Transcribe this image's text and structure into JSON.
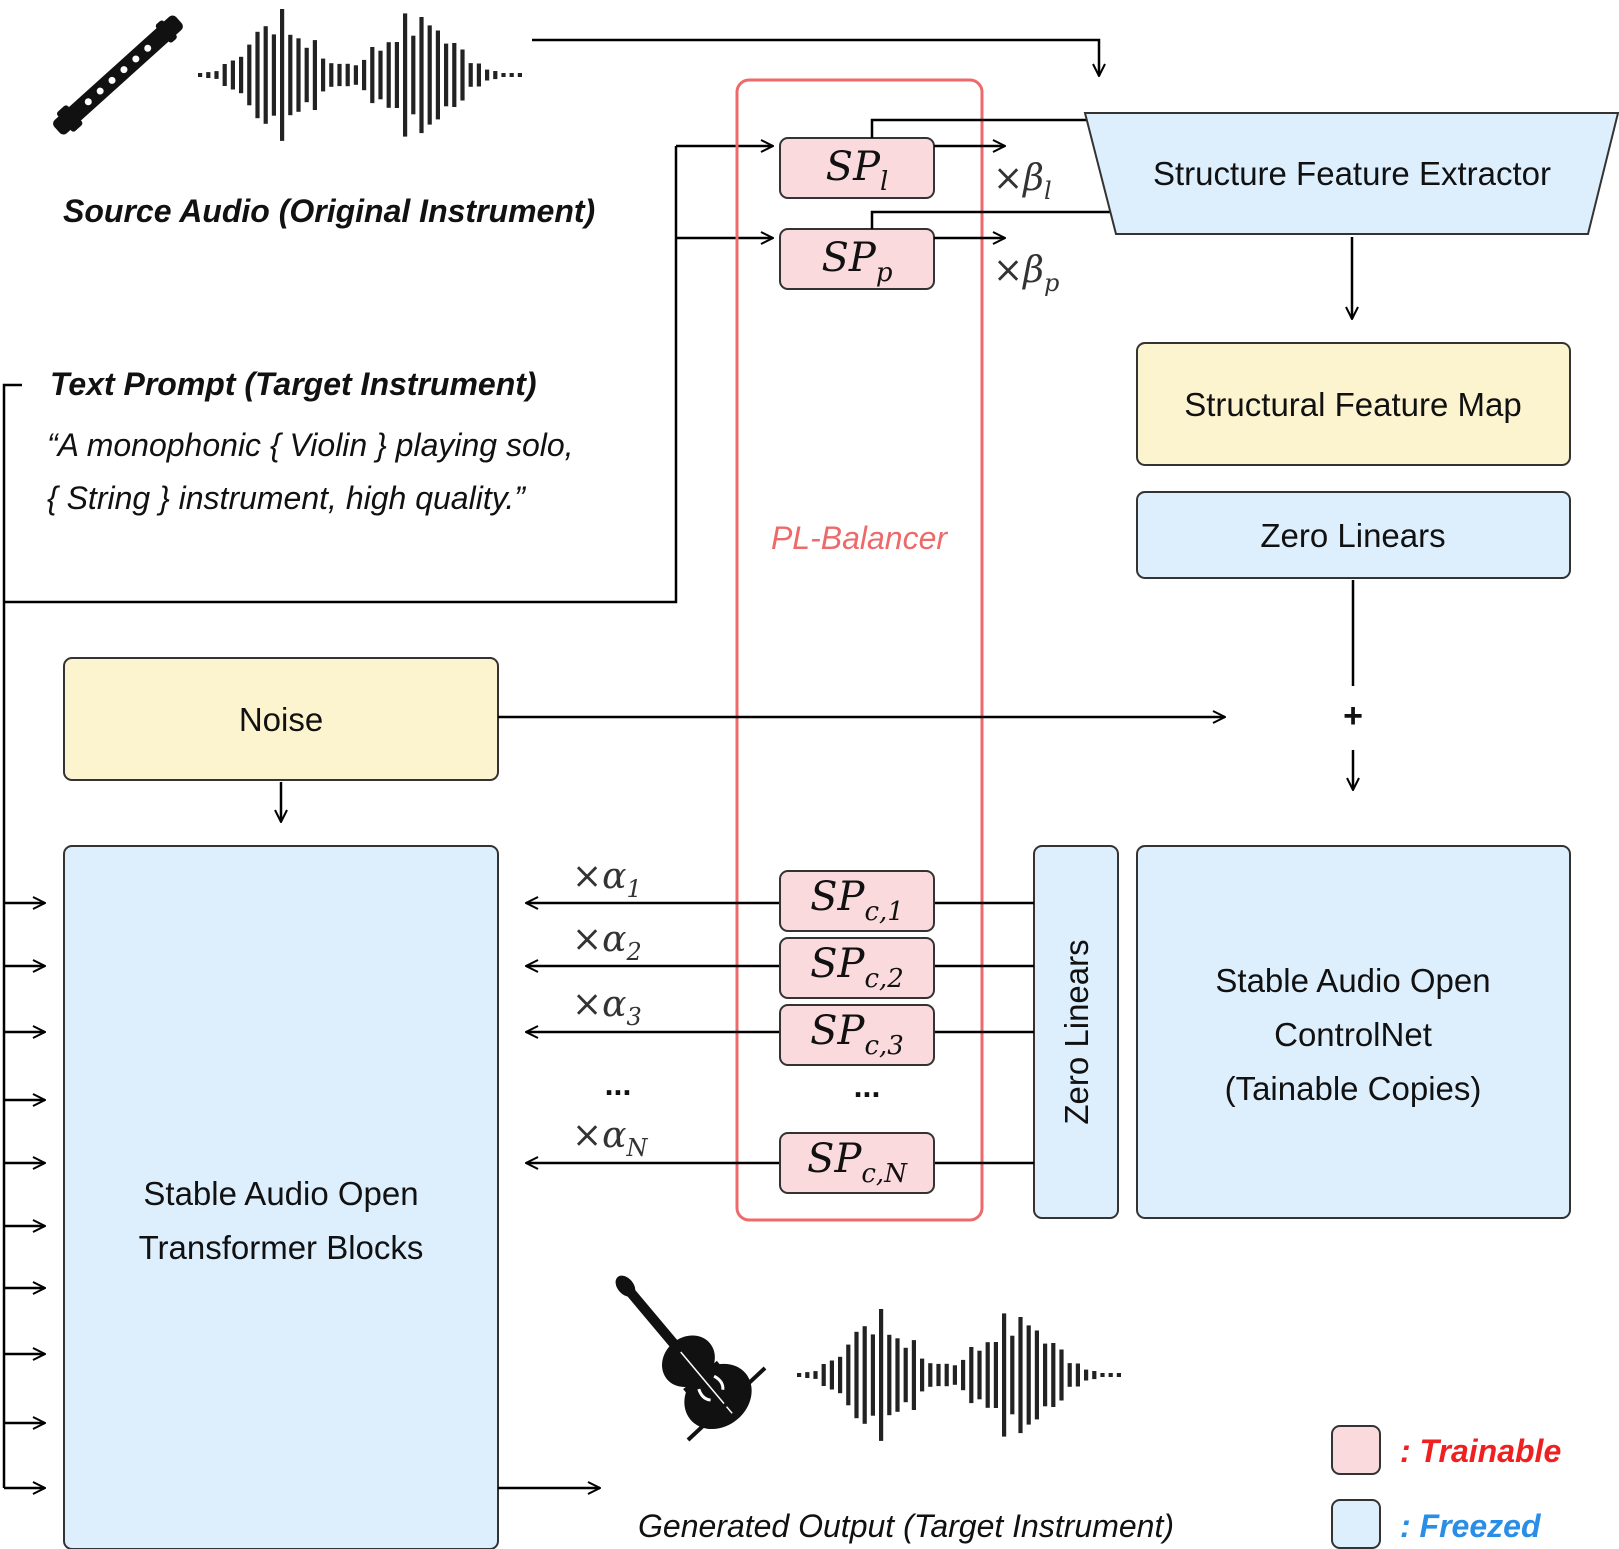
{
  "colors": {
    "trainable_fill": "#fadadd",
    "freezed_fill": "#ddeefc",
    "feature_fill": "#fcf3cf",
    "balancer_stroke": "#ee6a6a",
    "trainable_text": "#ee2020",
    "freezed_text": "#2a8ee6",
    "balancer_text": "#ee6a6a"
  },
  "source": {
    "label": "Source Audio (Original Instrument)",
    "icon": "flute-icon"
  },
  "prompt": {
    "title": "Text Prompt (Target Instrument)",
    "line1": "“A monophonic { Violin } playing solo,",
    "line2": "{ String } instrument, high quality.”"
  },
  "extractor": {
    "label": "Structure Feature Extractor"
  },
  "feature_map": {
    "label": "Structural Feature Map"
  },
  "zero_linears_top": {
    "label": "Zero Linears"
  },
  "zero_linears_side": {
    "label": "Zero Linears"
  },
  "noise": {
    "label": "Noise"
  },
  "plus": "+",
  "transformer": {
    "line1": "Stable Audio Open",
    "line2": "Transformer Blocks"
  },
  "controlnet": {
    "line1": "Stable Audio Open",
    "line2": "ControlNet",
    "line3": "(Tainable Copies)"
  },
  "balancer": {
    "label": "PL-Balancer",
    "sp_l": {
      "base": "SP",
      "sub": "l",
      "factor": "×β",
      "factor_sub": "l"
    },
    "sp_p": {
      "base": "SP",
      "sub": "p",
      "factor": "×β",
      "factor_sub": "p"
    },
    "controls": [
      {
        "base": "SP",
        "sub": "c,1",
        "factor": "×α",
        "factor_sub": "1"
      },
      {
        "base": "SP",
        "sub": "c,2",
        "factor": "×α",
        "factor_sub": "2"
      },
      {
        "base": "SP",
        "sub": "c,3",
        "factor": "×α",
        "factor_sub": "3"
      },
      {
        "base": "SP",
        "sub": "c,N",
        "factor": "×α",
        "factor_sub": "N"
      }
    ],
    "ellipsis_left": "...",
    "ellipsis_mid": "..."
  },
  "output": {
    "label": "Generated Output (Target Instrument)",
    "icon": "violin-icon"
  },
  "legend": {
    "trainable": ": Trainable",
    "freezed": ": Freezed"
  }
}
